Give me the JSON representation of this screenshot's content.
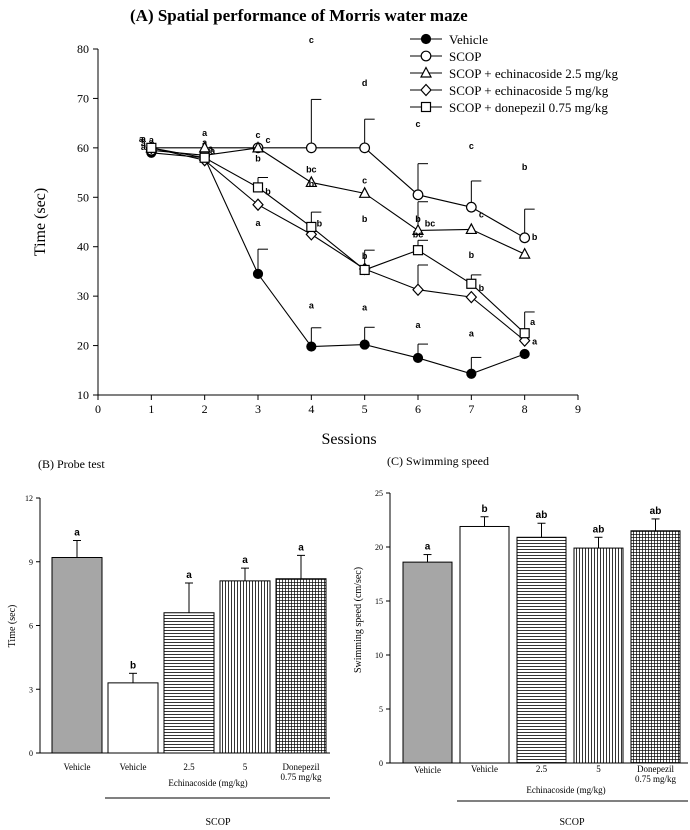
{
  "chart_data": [
    {
      "type": "line",
      "title": "(A) Spatial performance of Morris water maze",
      "xlabel": "Sessions",
      "ylabel": "Time (sec)",
      "xlim": [
        0,
        9
      ],
      "ylim": [
        10,
        80
      ],
      "xticks": [
        "0",
        "1",
        "2",
        "3",
        "4",
        "5",
        "6",
        "7",
        "8",
        "9"
      ],
      "yticks": [
        "10",
        "20",
        "30",
        "40",
        "50",
        "60",
        "70",
        "80"
      ],
      "legend_position": "top-right",
      "x": [
        1,
        2,
        3,
        4,
        5,
        6,
        7,
        8
      ],
      "series": [
        {
          "name": "Vehicle",
          "marker": "filled-circle",
          "values": [
            59,
            58,
            34.5,
            19.8,
            20.2,
            17.5,
            14.3,
            18.3
          ],
          "errors": [
            0,
            0,
            5,
            3.8,
            3.5,
            2.8,
            3.3,
            0
          ],
          "letters": [
            "a",
            "a",
            "a",
            "a",
            "a",
            "a",
            "a",
            ""
          ]
        },
        {
          "name": "SCOP",
          "marker": "open-circle",
          "values": [
            59.5,
            58.5,
            60,
            60,
            60,
            50.5,
            48,
            41.8
          ],
          "errors": [
            0,
            0,
            0,
            9.8,
            5.8,
            6.3,
            5.3,
            5.8
          ],
          "letters": [
            "a",
            "a",
            "c",
            "c",
            "d",
            "c",
            "c",
            "b"
          ]
        },
        {
          "name": "SCOP + echinacoside 2.5 mg/kg",
          "marker": "open-triangle",
          "values": [
            60,
            60,
            60,
            53,
            50.8,
            43.3,
            43.5,
            38.5
          ],
          "errors": [
            0,
            0,
            0,
            0,
            0,
            5.8,
            0,
            0
          ],
          "letters": [
            "a",
            "a",
            "c",
            "bc",
            "c",
            "bc",
            "c",
            "b"
          ]
        },
        {
          "name": "SCOP + echinacoside 5 mg/kg",
          "marker": "open-diamond",
          "values": [
            60,
            57.5,
            48.5,
            42.5,
            35.5,
            31.3,
            29.8,
            21
          ],
          "errors": [
            0,
            0,
            0,
            0,
            0,
            5,
            0,
            0
          ],
          "letters": [
            "a",
            "a",
            "b",
            "b",
            "b",
            "bc",
            "b",
            "a"
          ]
        },
        {
          "name": "SCOP + donepezil 0.75 mg/kg",
          "marker": "open-square",
          "values": [
            60,
            58,
            52,
            44,
            35.3,
            39.3,
            32.5,
            22.5
          ],
          "errors": [
            0,
            0,
            2,
            3,
            4,
            2,
            1.8,
            4.3
          ],
          "letters": [
            "a",
            "a",
            "b",
            "b",
            "b",
            "b",
            "b",
            "a"
          ]
        }
      ]
    },
    {
      "type": "bar",
      "title": "(B) Probe test",
      "ylabel": "Time (sec)",
      "ylim": [
        0,
        12
      ],
      "yticks": [
        "0",
        "3",
        "6",
        "9",
        "12"
      ],
      "categories": [
        "Vehicle",
        "Vehicle",
        "2.5",
        "5",
        "Donepezil 0.75 mg/kg"
      ],
      "values": [
        9.2,
        3.3,
        6.6,
        8.1,
        8.2
      ],
      "errors": [
        0.8,
        0.45,
        1.4,
        0.6,
        1.1
      ],
      "letters": [
        "a",
        "b",
        "a",
        "a",
        "a"
      ],
      "fills": [
        "gray",
        "white",
        "horizontal",
        "vertical",
        "grid"
      ],
      "group_label": "Echinacoside (mg/kg)",
      "scop_label": "SCOP"
    },
    {
      "type": "bar",
      "title": "(C) Swimming speed",
      "ylabel": "Swimming speed (cm/sec)",
      "ylim": [
        0,
        25
      ],
      "yticks": [
        "0",
        "5",
        "10",
        "15",
        "20",
        "25"
      ],
      "categories": [
        "Vehicle",
        "Vehicle",
        "2.5",
        "5",
        "Donepezil 0.75 mg/kg"
      ],
      "values": [
        18.6,
        21.9,
        20.9,
        19.9,
        21.5
      ],
      "errors": [
        0.7,
        0.9,
        1.3,
        1.0,
        1.1
      ],
      "letters": [
        "a",
        "b",
        "ab",
        "ab",
        "ab"
      ],
      "fills": [
        "gray",
        "white",
        "horizontal",
        "vertical",
        "grid"
      ],
      "group_label": "Echinacoside (mg/kg)",
      "scop_label": "SCOP"
    }
  ]
}
